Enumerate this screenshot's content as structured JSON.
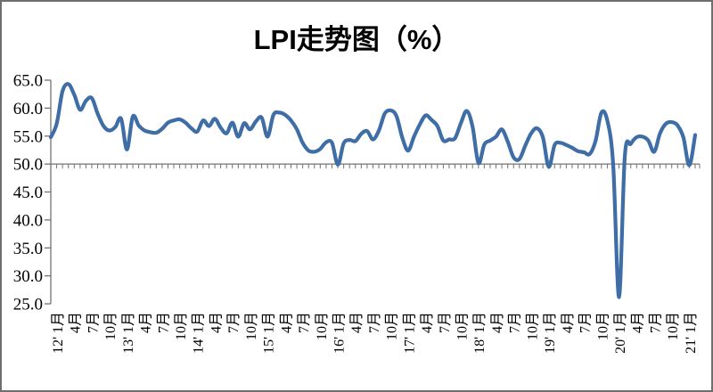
{
  "chart_data": {
    "type": "line",
    "title": "LPI走势图（%）",
    "legend": "none",
    "grid": false,
    "ylim": [
      25,
      65
    ],
    "y_tick_step": 5,
    "y_tick_labels": [
      "25.0",
      "30.0",
      "35.0",
      "40.0",
      "45.0",
      "50.0",
      "55.0",
      "60.0",
      "65.0"
    ],
    "x_axis_cross_at": 50,
    "x_label_every_n_months": 3,
    "x_tick_labels": [
      "12' 1月",
      "4月",
      "7月",
      "10月",
      "13' 1月",
      "4月",
      "7月",
      "10月",
      "14' 1月",
      "4月",
      "7月",
      "10月",
      "15' 1月",
      "4月",
      "7月",
      "10月",
      "16' 1月",
      "4月",
      "7月",
      "10月",
      "17' 1月",
      "4月",
      "7月",
      "10月",
      "18' 1月",
      "4月",
      "7月",
      "10月",
      "19' 1月",
      "4月",
      "7月",
      "10月",
      "20' 1月",
      "4月",
      "7月",
      "10月",
      "21' 1月"
    ],
    "series": [
      {
        "name": "LPI",
        "unit": "%",
        "start": "2012-01",
        "frequency": "monthly",
        "values": [
          54.8,
          57.2,
          63.0,
          64.3,
          62.4,
          59.7,
          61.3,
          61.8,
          59.0,
          56.8,
          56.0,
          56.6,
          58.1,
          52.6,
          58.5,
          56.9,
          56.0,
          55.7,
          55.6,
          56.3,
          57.4,
          57.8,
          58.0,
          57.4,
          56.4,
          55.8,
          57.8,
          56.8,
          58.1,
          56.5,
          55.5,
          57.4,
          54.9,
          57.3,
          56.2,
          57.6,
          58.3,
          54.9,
          58.8,
          59.2,
          58.8,
          57.8,
          56.2,
          53.8,
          52.4,
          52.2,
          52.7,
          53.9,
          53.8,
          49.9,
          53.7,
          54.3,
          54.1,
          55.4,
          55.9,
          54.4,
          56.0,
          59.0,
          59.6,
          58.6,
          54.7,
          52.4,
          54.9,
          57.1,
          58.7,
          57.9,
          56.8,
          54.2,
          54.4,
          54.6,
          57.3,
          59.5,
          56.7,
          50.2,
          53.5,
          54.2,
          54.9,
          56.2,
          54.0,
          51.2,
          50.9,
          53.3,
          55.5,
          56.4,
          54.8,
          49.5,
          53.4,
          53.8,
          53.4,
          52.9,
          52.3,
          52.1,
          51.8,
          54.2,
          59.2,
          57.8,
          49.9,
          26.2,
          51.5,
          53.6,
          54.8,
          54.9,
          54.2,
          52.2,
          55.5,
          57.2,
          57.5,
          56.9,
          54.7,
          49.8,
          55.2
        ]
      }
    ],
    "colors": {
      "line": "#3f6da5",
      "axis": "#737373",
      "text": "#000000",
      "background": "#ffffff",
      "border": "#6e6e6e"
    }
  }
}
